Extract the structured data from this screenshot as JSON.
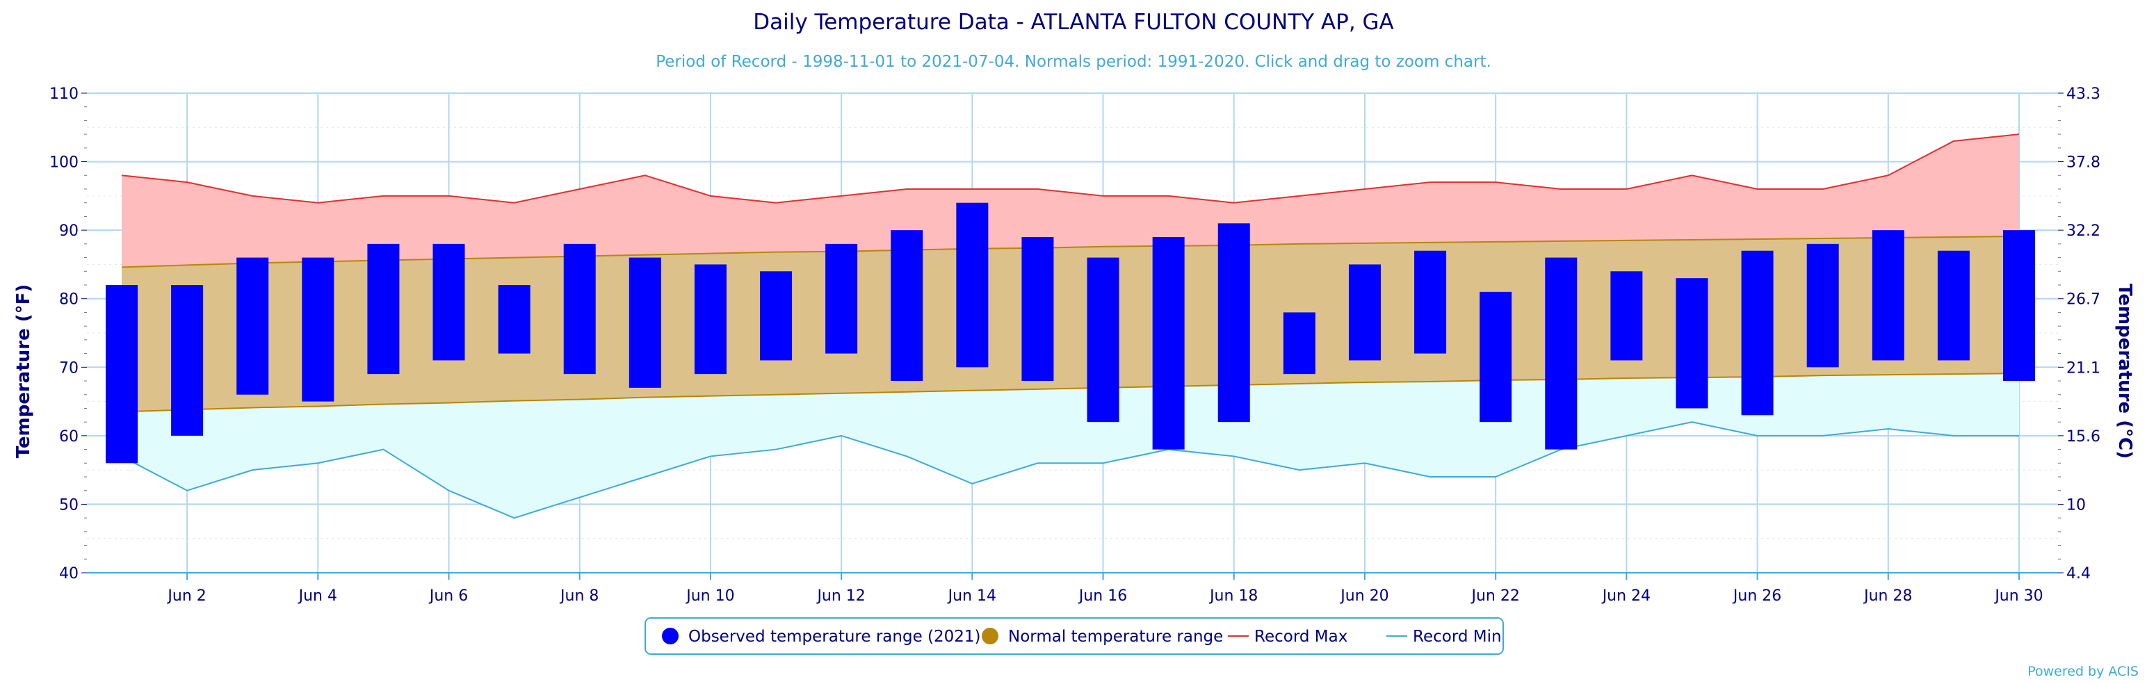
{
  "chart_data": {
    "type": "bar",
    "title": "Daily Temperature Data - ATLANTA FULTON COUNTY AP, GA",
    "subtitle": "Period of Record - 1998-11-01 to 2021-07-04. Normals period: 1991-2020. Click and drag to zoom chart.",
    "ylabel_left": "Temperature (°F)",
    "ylabel_right": "Temperature (°C)",
    "ylim": [
      40,
      110
    ],
    "yticks_left": [
      40,
      50,
      60,
      70,
      80,
      90,
      100,
      110
    ],
    "yticks_right": [
      "4.4",
      "10",
      "15.6",
      "21.1",
      "26.7",
      "32.2",
      "37.8",
      "43.3"
    ],
    "xlim": [
      1,
      30
    ],
    "x_ticks": [
      2,
      4,
      6,
      8,
      10,
      12,
      14,
      16,
      18,
      20,
      22,
      24,
      26,
      28,
      30
    ],
    "x_tick_labels": [
      "Jun 2",
      "Jun 4",
      "Jun 6",
      "Jun 8",
      "Jun 10",
      "Jun 12",
      "Jun 14",
      "Jun 16",
      "Jun 18",
      "Jun 20",
      "Jun 22",
      "Jun 24",
      "Jun 26",
      "Jun 28",
      "Jun 30"
    ],
    "days": [
      1,
      2,
      3,
      4,
      5,
      6,
      7,
      8,
      9,
      10,
      11,
      12,
      13,
      14,
      15,
      16,
      17,
      18,
      19,
      20,
      21,
      22,
      23,
      24,
      25,
      26,
      27,
      28,
      29,
      30
    ],
    "observed_max": [
      82,
      82,
      86,
      86,
      88,
      88,
      82,
      88,
      86,
      85,
      84,
      88,
      90,
      94,
      89,
      86,
      89,
      91,
      78,
      85,
      87,
      81,
      86,
      84,
      83,
      87,
      88,
      90,
      87,
      90
    ],
    "observed_min": [
      56,
      60,
      66,
      65,
      69,
      71,
      72,
      69,
      67,
      69,
      71,
      72,
      68,
      70,
      68,
      62,
      58,
      62,
      69,
      71,
      72,
      62,
      58,
      71,
      64,
      63,
      70,
      71,
      71,
      68
    ],
    "normal_max": [
      84.6,
      84.9,
      85.2,
      85.4,
      85.6,
      85.8,
      86.0,
      86.2,
      86.4,
      86.6,
      86.8,
      86.9,
      87.1,
      87.3,
      87.4,
      87.6,
      87.7,
      87.8,
      88.0,
      88.1,
      88.2,
      88.3,
      88.4,
      88.5,
      88.6,
      88.7,
      88.8,
      88.9,
      89.0,
      89.1
    ],
    "normal_min": [
      63.5,
      63.8,
      64.1,
      64.3,
      64.6,
      64.8,
      65.1,
      65.3,
      65.6,
      65.8,
      66.0,
      66.2,
      66.4,
      66.6,
      66.8,
      67.0,
      67.2,
      67.4,
      67.6,
      67.8,
      67.9,
      68.1,
      68.2,
      68.4,
      68.5,
      68.6,
      68.8,
      68.9,
      69.0,
      69.1
    ],
    "record_max": [
      98,
      97,
      95,
      94,
      95,
      95,
      94,
      96,
      98,
      95,
      94,
      95,
      96,
      96,
      96,
      95,
      95,
      94,
      95,
      96,
      97,
      97,
      96,
      96,
      98,
      96,
      96,
      98,
      103,
      104
    ],
    "record_min": [
      57,
      52,
      55,
      56,
      58,
      52,
      48,
      51,
      54,
      57,
      58,
      60,
      57,
      53,
      56,
      56,
      58,
      57,
      55,
      56,
      54,
      54,
      58,
      60,
      62,
      60,
      60,
      61,
      60,
      60
    ],
    "legend": [
      {
        "label": "Observed temperature range (2021)",
        "color": "#0000ff",
        "marker": "circle"
      },
      {
        "label": "Normal temperature range",
        "color": "#b8860b",
        "marker": "circle"
      },
      {
        "label": "Record Max",
        "color": "#e03030",
        "marker": "line"
      },
      {
        "label": "Record Min",
        "color": "#3fa9d9",
        "marker": "line"
      }
    ],
    "legend_position": "bottom-center",
    "grid": true
  },
  "colors": {
    "observed": "#0000ff",
    "normal_fill": "#dcc28a",
    "normal_line": "#b8860b",
    "record_max_fill": "#ffbcbc",
    "record_max_line": "#e03030",
    "record_min_fill": "#e0fcfc",
    "record_min_line": "#3fa9d9",
    "grid": "#b0d8ee",
    "text": "#000080"
  },
  "credit": "Powered by ACIS"
}
